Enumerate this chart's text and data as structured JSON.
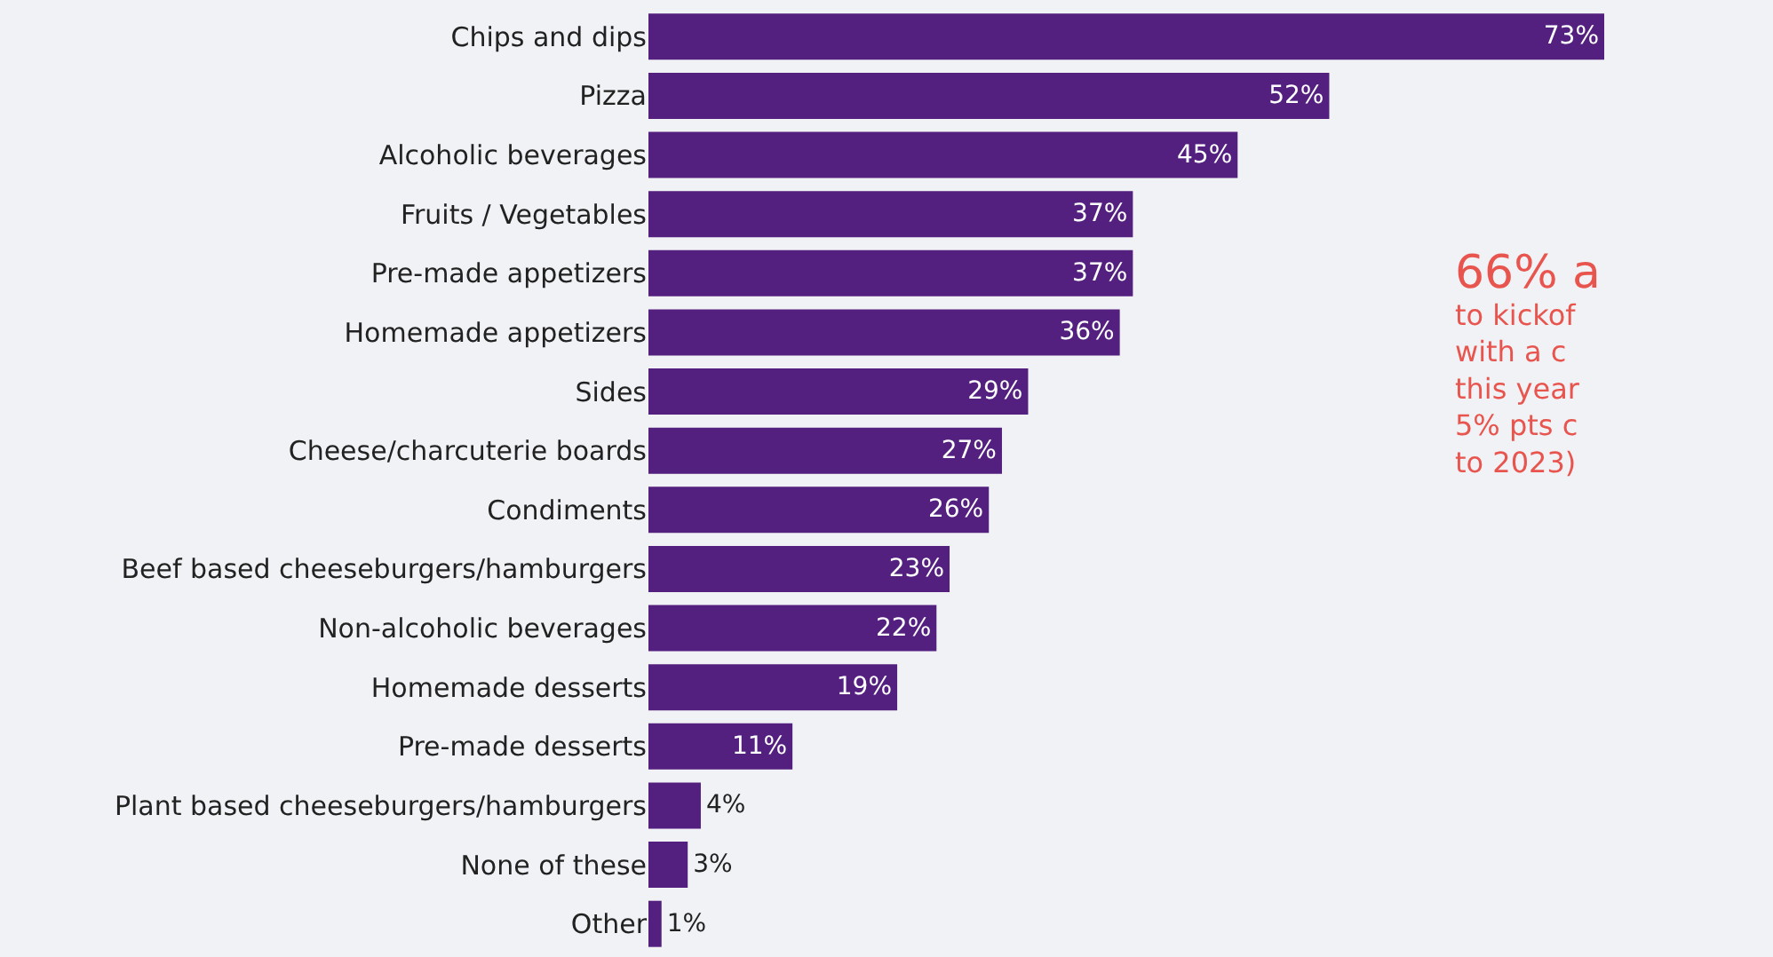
{
  "chart_data": {
    "type": "bar",
    "orientation": "horizontal",
    "categories": [
      "Chips and dips",
      "Pizza",
      "Alcoholic beverages",
      "Fruits / Vegetables",
      "Pre-made appetizers",
      "Homemade appetizers",
      "Sides",
      "Cheese/charcuterie boards",
      "Condiments",
      "Beef based cheeseburgers/hamburgers",
      "Non-alcoholic beverages",
      "Homemade desserts",
      "Pre-made desserts",
      "Plant based cheeseburgers/hamburgers",
      "None of these",
      "Other"
    ],
    "values": [
      73,
      52,
      45,
      37,
      37,
      36,
      29,
      27,
      26,
      23,
      22,
      19,
      11,
      4,
      3,
      1
    ],
    "value_labels": [
      "73%",
      "52%",
      "45%",
      "37%",
      "37%",
      "36%",
      "29%",
      "27%",
      "26%",
      "23%",
      "22%",
      "19%",
      "11%",
      "4%",
      "3%",
      "1%"
    ],
    "color": "#54207f",
    "annotations": [
      "66% a\nto kickof\nwith a c\nthis year\n5% pts c\nto 2023)"
    ],
    "grid": false,
    "legend": false
  }
}
